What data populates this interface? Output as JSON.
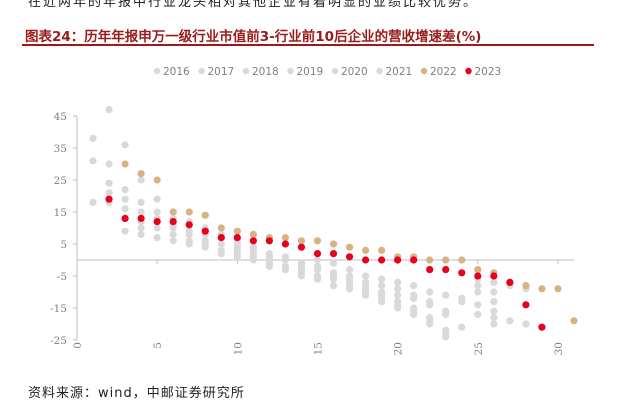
{
  "header_text": "在近两年的年报中行业龙头相对其他企业有着明显的业绩比较优势。",
  "figure_title": "图表24：历年年报申万一级行业市值前3-行业前10后企业的营收增速差(%)",
  "source": "资料来源：wind，中邮证券研究所",
  "colors": {
    "past_years": "#d9d9d9",
    "y2022": "#d8b382",
    "y2023": "#e8001c",
    "axis": "#bfbfbf",
    "title": "#9b1b1b"
  },
  "chart_data": {
    "type": "scatter",
    "title": "图表24：历年年报申万一级行业市值前3-行业前10后企业的营收增速差(%)",
    "xlabel": "",
    "ylabel": "",
    "xlim": [
      0,
      31
    ],
    "ylim": [
      -25,
      45
    ],
    "x_ticks": [
      0,
      5,
      10,
      15,
      20,
      25,
      30
    ],
    "y_ticks": [
      45,
      35,
      25,
      15,
      5,
      -5,
      -15,
      -25
    ],
    "grid": false,
    "legend_position": "top",
    "series": [
      {
        "name": "2016",
        "color": "#d9d9d9",
        "points": [
          [
            1,
            31
          ],
          [
            2,
            24
          ],
          [
            3,
            19
          ],
          [
            4,
            15
          ],
          [
            5,
            13
          ],
          [
            6,
            11
          ],
          [
            7,
            9
          ],
          [
            8,
            8
          ],
          [
            9,
            7
          ],
          [
            10,
            5
          ],
          [
            11,
            3
          ],
          [
            12,
            1
          ],
          [
            13,
            0
          ],
          [
            14,
            -2
          ],
          [
            15,
            -3
          ],
          [
            16,
            -4
          ],
          [
            17,
            -5
          ],
          [
            18,
            -7
          ],
          [
            19,
            -8
          ],
          [
            20,
            -9
          ],
          [
            21,
            -11
          ],
          [
            22,
            -13
          ],
          [
            23,
            -17
          ],
          [
            24,
            -21
          ],
          [
            26,
            -18
          ],
          [
            27,
            -19
          ],
          [
            28,
            -20
          ]
        ]
      },
      {
        "name": "2017",
        "color": "#d9d9d9",
        "points": [
          [
            1,
            18
          ],
          [
            2,
            47
          ],
          [
            3,
            36
          ],
          [
            4,
            25
          ],
          [
            5,
            19
          ],
          [
            6,
            15
          ],
          [
            7,
            12
          ],
          [
            8,
            10
          ],
          [
            9,
            8
          ],
          [
            10,
            6
          ],
          [
            11,
            4
          ],
          [
            12,
            2
          ],
          [
            13,
            0
          ],
          [
            14,
            -1
          ],
          [
            15,
            -3
          ],
          [
            16,
            -5
          ],
          [
            17,
            -7
          ],
          [
            18,
            -9
          ],
          [
            19,
            -11
          ],
          [
            20,
            -13
          ],
          [
            21,
            -15
          ],
          [
            22,
            -18
          ],
          [
            23,
            -22
          ],
          [
            25,
            -17
          ],
          [
            26,
            -20
          ]
        ]
      },
      {
        "name": "2018",
        "color": "#d9d9d9",
        "points": [
          [
            1,
            38
          ],
          [
            2,
            30
          ],
          [
            3,
            22
          ],
          [
            4,
            18
          ],
          [
            5,
            15
          ],
          [
            6,
            13
          ],
          [
            7,
            11
          ],
          [
            8,
            9
          ],
          [
            9,
            7
          ],
          [
            10,
            4
          ],
          [
            11,
            2
          ],
          [
            12,
            0
          ],
          [
            13,
            -2
          ],
          [
            14,
            -3
          ],
          [
            15,
            -5
          ],
          [
            16,
            -6
          ],
          [
            17,
            -8
          ],
          [
            18,
            -10
          ],
          [
            19,
            -12
          ],
          [
            20,
            -14
          ],
          [
            21,
            -16
          ],
          [
            22,
            -19
          ],
          [
            23,
            -23
          ],
          [
            25,
            -14
          ],
          [
            26,
            -16
          ]
        ]
      },
      {
        "name": "2019",
        "color": "#d9d9d9",
        "points": [
          [
            2,
            21
          ],
          [
            3,
            16
          ],
          [
            4,
            12
          ],
          [
            5,
            10
          ],
          [
            6,
            8
          ],
          [
            7,
            6
          ],
          [
            8,
            5
          ],
          [
            9,
            3
          ],
          [
            10,
            2
          ],
          [
            11,
            1
          ],
          [
            12,
            -1
          ],
          [
            13,
            -3
          ],
          [
            14,
            -5
          ],
          [
            15,
            -6
          ],
          [
            16,
            -8
          ],
          [
            17,
            -9
          ],
          [
            18,
            -11
          ],
          [
            19,
            -13
          ],
          [
            20,
            -15
          ],
          [
            21,
            -17
          ],
          [
            22,
            -20
          ],
          [
            23,
            -24
          ],
          [
            25,
            -10
          ],
          [
            26,
            -13
          ]
        ]
      },
      {
        "name": "2020",
        "color": "#d9d9d9",
        "points": [
          [
            2,
            18
          ],
          [
            3,
            9
          ],
          [
            4,
            8
          ],
          [
            5,
            7
          ],
          [
            6,
            6
          ],
          [
            7,
            5
          ],
          [
            8,
            4
          ],
          [
            9,
            2
          ],
          [
            10,
            1
          ],
          [
            11,
            0
          ],
          [
            12,
            -2
          ],
          [
            13,
            -3
          ],
          [
            14,
            -4
          ],
          [
            15,
            -2
          ],
          [
            16,
            -4
          ],
          [
            17,
            -6
          ],
          [
            18,
            -8
          ],
          [
            19,
            -10
          ],
          [
            20,
            -11
          ],
          [
            21,
            -12
          ],
          [
            22,
            -14
          ],
          [
            23,
            -16
          ],
          [
            24,
            -13
          ],
          [
            25,
            -8
          ],
          [
            26,
            -10
          ]
        ]
      },
      {
        "name": "2021",
        "color": "#d9d9d9",
        "points": [
          [
            3,
            13
          ],
          [
            4,
            10
          ],
          [
            5,
            12
          ],
          [
            6,
            10
          ],
          [
            7,
            8
          ],
          [
            8,
            6
          ],
          [
            9,
            5
          ],
          [
            10,
            3
          ],
          [
            11,
            1
          ],
          [
            12,
            -1
          ],
          [
            13,
            1
          ],
          [
            14,
            -1
          ],
          [
            15,
            0
          ],
          [
            16,
            -1
          ],
          [
            17,
            -3
          ],
          [
            18,
            -5
          ],
          [
            19,
            -6
          ],
          [
            20,
            -7
          ],
          [
            21,
            -8
          ],
          [
            22,
            -10
          ],
          [
            23,
            -11
          ],
          [
            24,
            -12
          ],
          [
            25,
            -6
          ],
          [
            26,
            -7
          ],
          [
            27,
            -8
          ],
          [
            28,
            -9
          ]
        ]
      },
      {
        "name": "2022",
        "color": "#d8b382",
        "points": [
          [
            3,
            30
          ],
          [
            4,
            27
          ],
          [
            5,
            25
          ],
          [
            6,
            15
          ],
          [
            7,
            15
          ],
          [
            8,
            14
          ],
          [
            9,
            10
          ],
          [
            10,
            9
          ],
          [
            11,
            8
          ],
          [
            12,
            7
          ],
          [
            13,
            7
          ],
          [
            14,
            6
          ],
          [
            15,
            6
          ],
          [
            16,
            5
          ],
          [
            17,
            4
          ],
          [
            18,
            3
          ],
          [
            19,
            3
          ],
          [
            20,
            1
          ],
          [
            21,
            1
          ],
          [
            22,
            0
          ],
          [
            23,
            0
          ],
          [
            24,
            0
          ],
          [
            25,
            -3
          ],
          [
            26,
            -4
          ],
          [
            27,
            -7
          ],
          [
            28,
            -8
          ],
          [
            29,
            -9
          ],
          [
            30,
            -9
          ],
          [
            31,
            -19
          ]
        ]
      },
      {
        "name": "2023",
        "color": "#e8001c",
        "points": [
          [
            2,
            19
          ],
          [
            3,
            13
          ],
          [
            4,
            13
          ],
          [
            5,
            12
          ],
          [
            6,
            12
          ],
          [
            7,
            11
          ],
          [
            8,
            9
          ],
          [
            9,
            7
          ],
          [
            10,
            7
          ],
          [
            11,
            6
          ],
          [
            12,
            6
          ],
          [
            13,
            5
          ],
          [
            14,
            4
          ],
          [
            15,
            2
          ],
          [
            16,
            2
          ],
          [
            17,
            1
          ],
          [
            18,
            0
          ],
          [
            19,
            0
          ],
          [
            20,
            0
          ],
          [
            21,
            0
          ],
          [
            22,
            -3
          ],
          [
            23,
            -3
          ],
          [
            24,
            -4
          ],
          [
            25,
            -5
          ],
          [
            26,
            -5
          ],
          [
            27,
            -7
          ],
          [
            28,
            -14
          ],
          [
            29,
            -21
          ]
        ]
      }
    ]
  }
}
